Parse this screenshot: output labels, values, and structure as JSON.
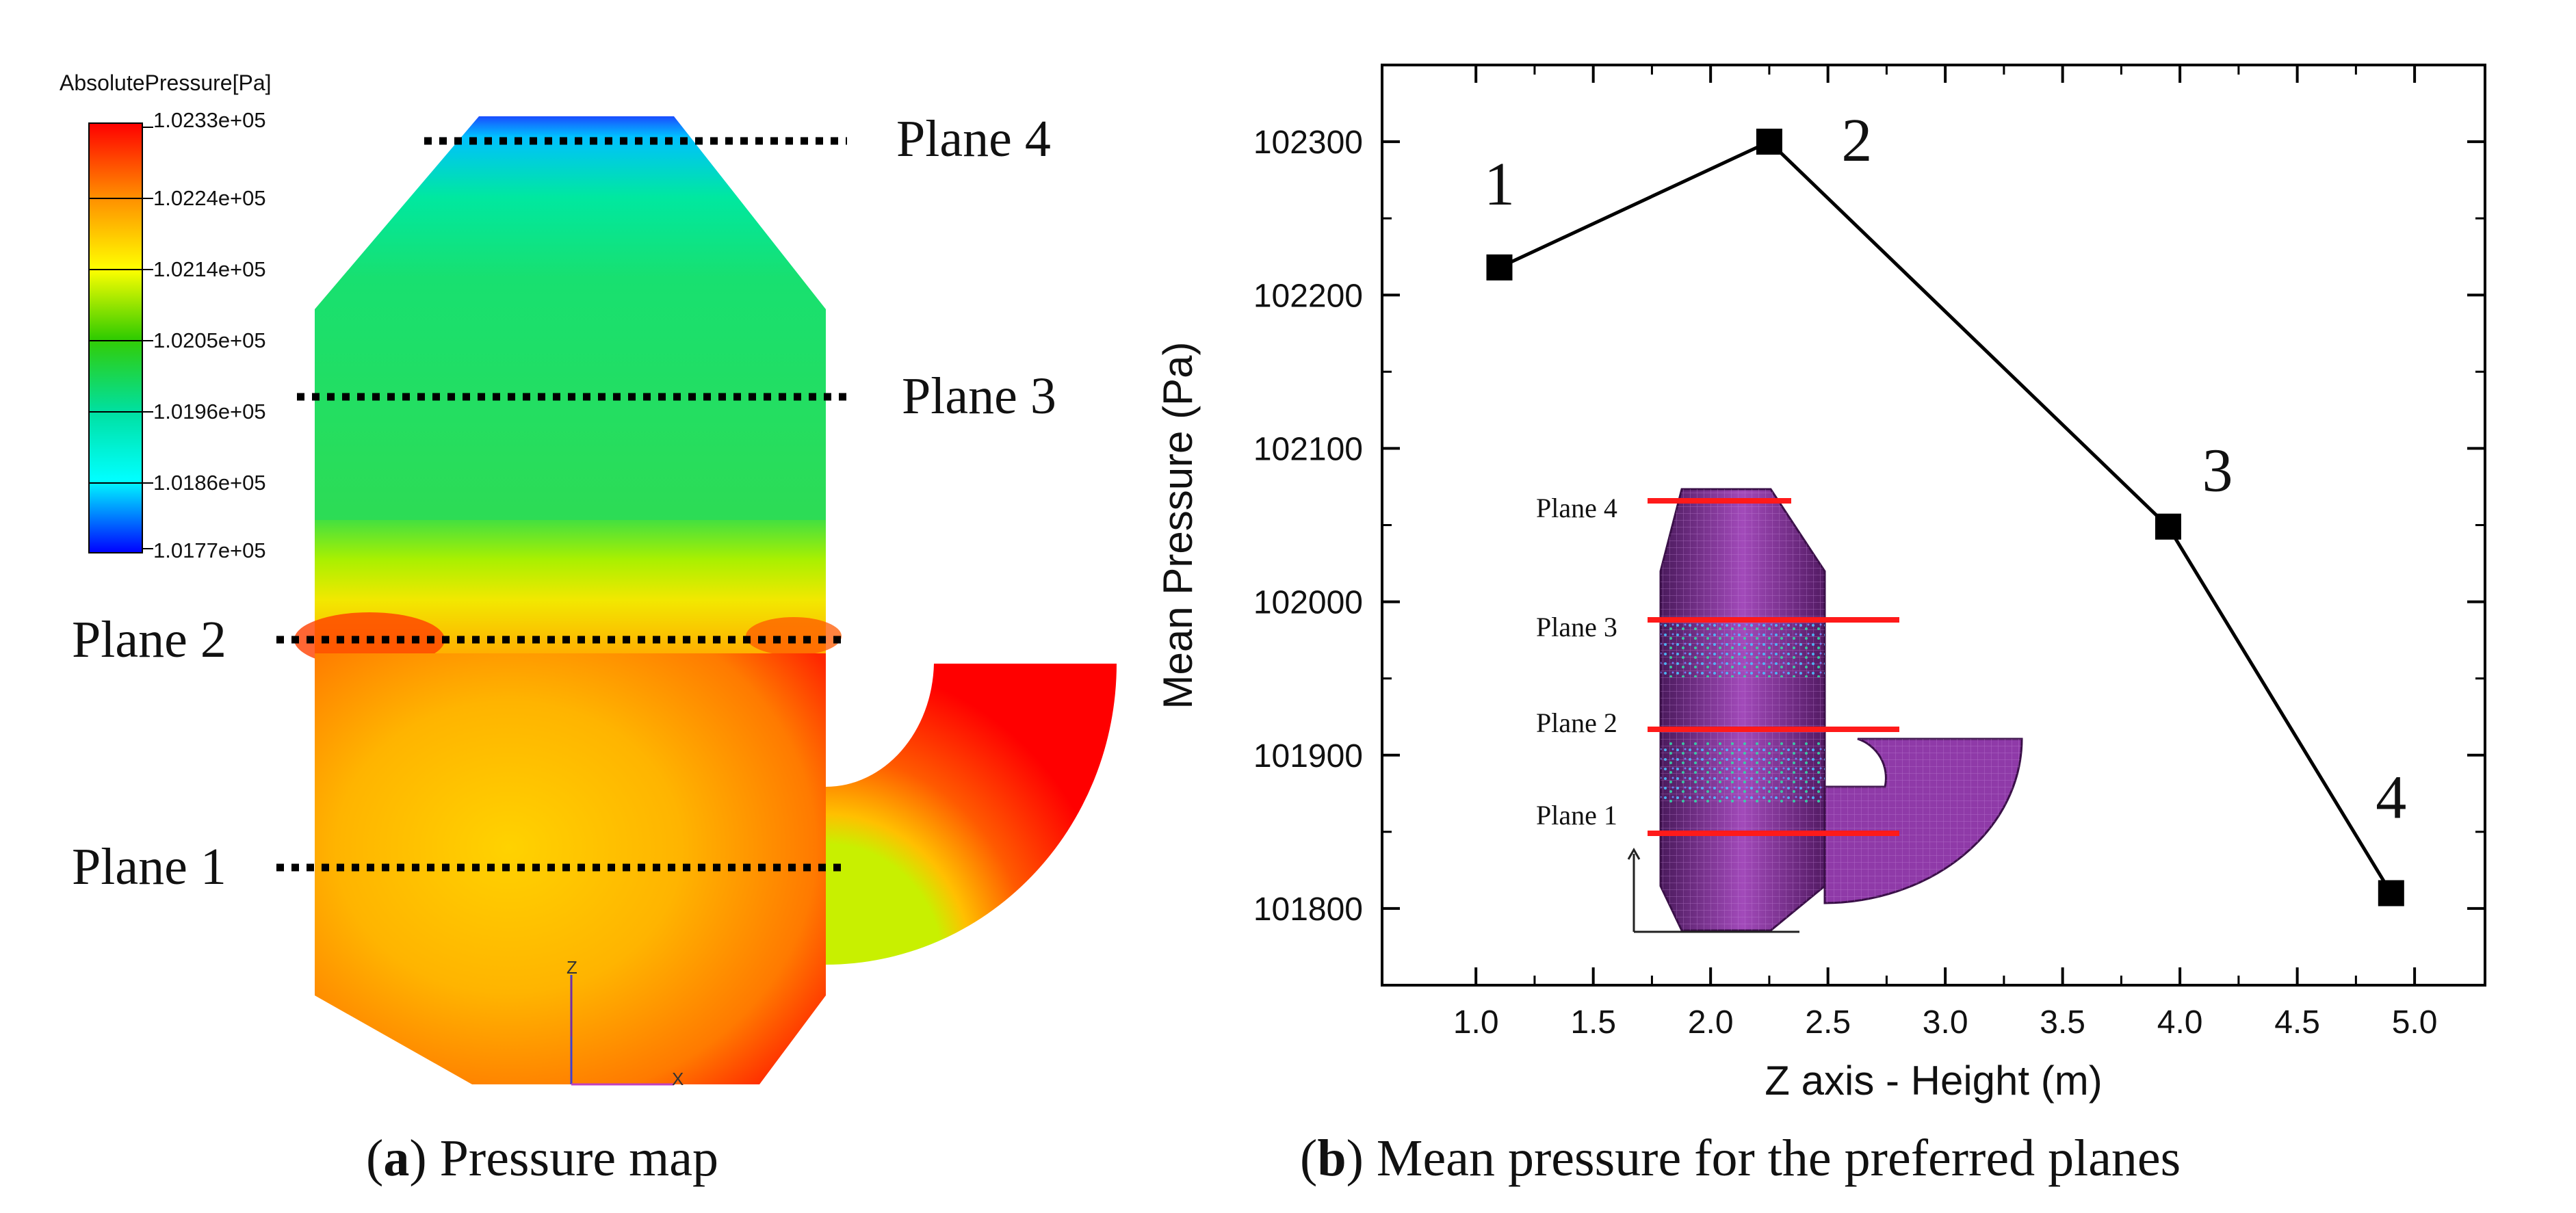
{
  "colorbar": {
    "title": "AbsolutePressure[Pa]",
    "labels": [
      "1.0233e+05",
      "1.0224e+05",
      "1.0214e+05",
      "1.0205e+05",
      "1.0196e+05",
      "1.0186e+05",
      "1.0177e+05"
    ],
    "colors": [
      "#ff0000",
      "#ff8c00",
      "#ffff00",
      "#33cc00",
      "#00e0a0",
      "#00ffff",
      "#0000ff"
    ]
  },
  "pressure_map": {
    "plane_labels": [
      "Plane 4",
      "Plane 3",
      "Plane 2",
      "Plane 1"
    ],
    "axis_z": "Z",
    "axis_x": "X"
  },
  "caption_a": {
    "letter": "a",
    "open": "(",
    "close": ")",
    "text": " Pressure map"
  },
  "caption_b": {
    "letter": "b",
    "open": "(",
    "close": ")",
    "text": " Mean pressure for the preferred planes"
  },
  "inset": {
    "labels": [
      "Plane 4",
      "Plane 3",
      "Plane 2",
      "Plane 1"
    ]
  },
  "chart_data": {
    "type": "line",
    "title": "",
    "xlabel": "Z axis - Height (m)",
    "ylabel": "Mean Pressure (Pa)",
    "xlim": [
      0.6,
      5.3
    ],
    "ylim": [
      101750,
      102350
    ],
    "xticks": [
      "1.0",
      "1.5",
      "2.0",
      "2.5",
      "3.0",
      "3.5",
      "4.0",
      "4.5",
      "5.0"
    ],
    "yticks": [
      "101800",
      "101900",
      "102000",
      "102100",
      "102200",
      "102300"
    ],
    "x": [
      1.1,
      2.25,
      3.95,
      4.9
    ],
    "y": [
      102218,
      102300,
      102049,
      101810
    ],
    "point_labels": [
      "1",
      "2",
      "3",
      "4"
    ],
    "series_color": "#000000"
  }
}
